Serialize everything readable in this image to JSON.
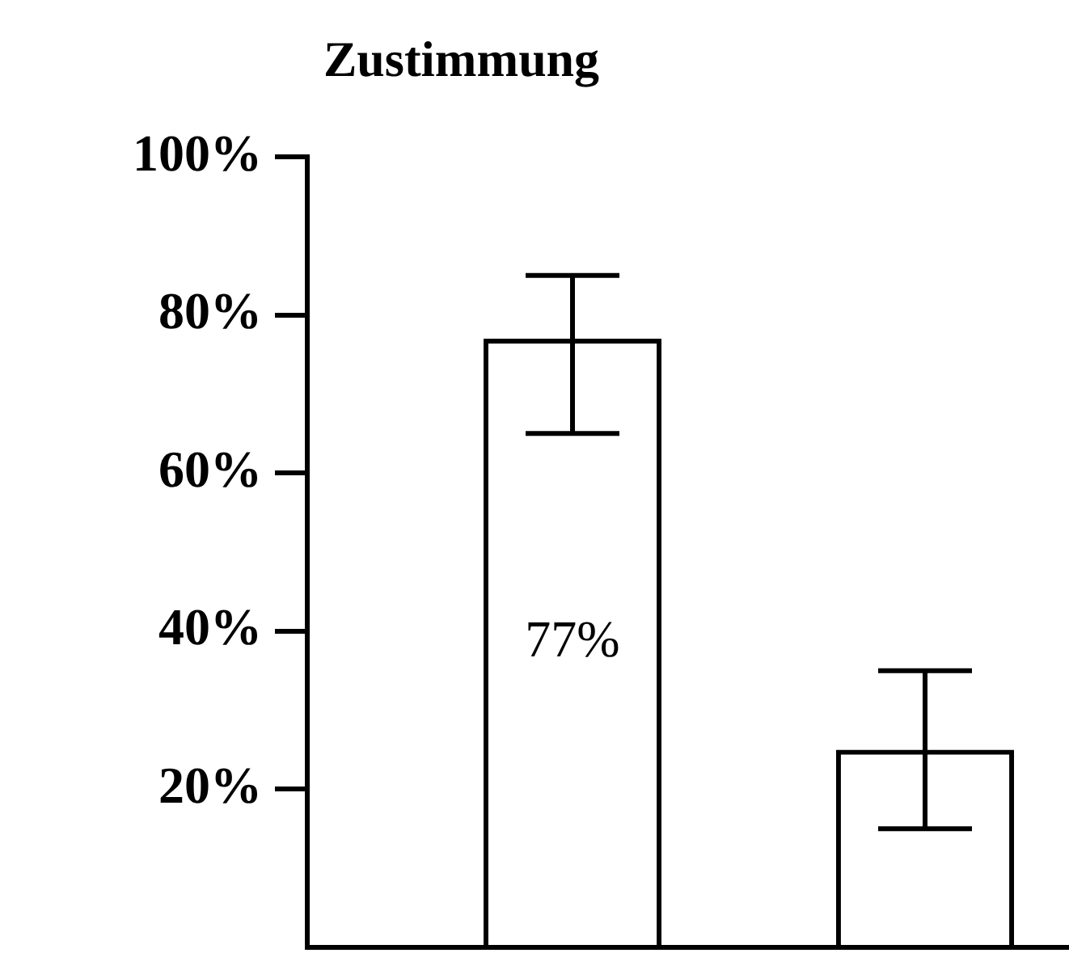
{
  "chart_data": {
    "type": "bar",
    "title": "Zustimmung",
    "categories": [
      null,
      null
    ],
    "values": [
      77,
      25
    ],
    "color": "#000000",
    "errors": [
      [
        65,
        85
      ],
      [
        15,
        35
      ]
    ],
    "value_labels": [
      "77%",
      null
    ],
    "ylim": [
      0,
      100
    ],
    "yticks": [
      {
        "value": 20,
        "label": "20%"
      },
      {
        "value": 40,
        "label": "40%"
      },
      {
        "value": 60,
        "label": "60%"
      },
      {
        "value": 80,
        "label": "80%"
      },
      {
        "value": 100,
        "label": "100%"
      }
    ],
    "grid": false,
    "legend": false,
    "tick_labels": "y"
  }
}
